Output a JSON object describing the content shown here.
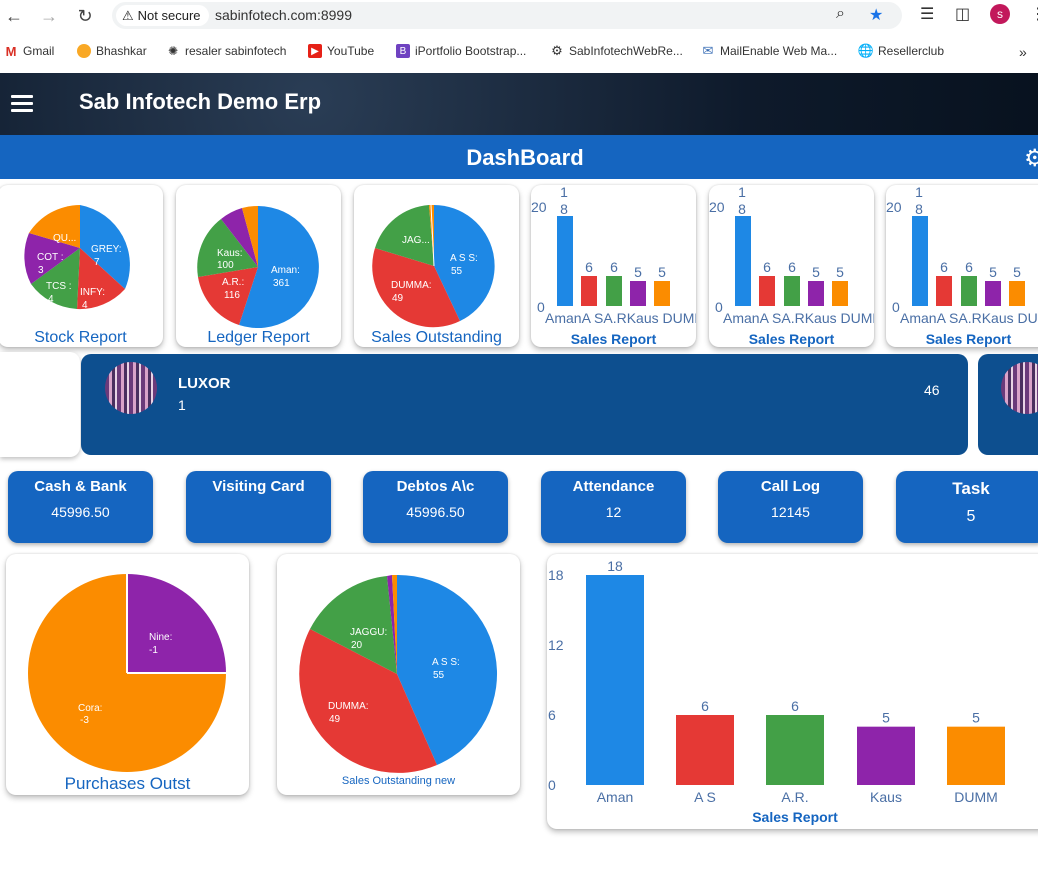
{
  "browser": {
    "security_label": "Not secure",
    "url": "sabinfotech.com:8999",
    "profile_initial": "s",
    "bookmarks": [
      "Gmail",
      "Bhashkar",
      "resaler sabinfotech",
      "YouTube",
      "iPortfolio Bootstrap...",
      "SabInfotechWebRe...",
      "MailEnable Web Ma...",
      "Resellerclub"
    ]
  },
  "app": {
    "title": "Sab Infotech Demo Erp",
    "dashboard_title": "DashBoard"
  },
  "colors": {
    "blue": "#1e88e5",
    "red": "#e53935",
    "green": "#43a047",
    "purple": "#8e24aa",
    "orange": "#fb8c00",
    "header_blue": "#1565c0"
  },
  "top_cards": {
    "stock": {
      "title": "Stock Report",
      "slices": [
        {
          "label": "GREY:",
          "value": "7"
        },
        {
          "label": "INFY:",
          "value": "4"
        },
        {
          "label": "TCS :",
          "value": "4"
        },
        {
          "label": "COT :",
          "value": "3"
        },
        {
          "label": "QU...",
          "value": ""
        }
      ]
    },
    "ledger": {
      "title": "Ledger Report",
      "slices": [
        {
          "label": "Aman:",
          "value": "361"
        },
        {
          "label": "A.R.:",
          "value": "116"
        },
        {
          "label": "Kaus:",
          "value": "100"
        }
      ]
    },
    "sales_out": {
      "title": "Sales Outstanding",
      "slices": [
        {
          "label": "A S S:",
          "value": "55"
        },
        {
          "label": "DUMMA:",
          "value": "49"
        },
        {
          "label": "JAG...",
          "value": ""
        }
      ]
    },
    "sales_report_title": "Sales Report",
    "mini_bar": {
      "top_label_a": "1",
      "top_label_b": "8",
      "y_top": "20",
      "y_zero": "0",
      "values": [
        "6",
        "6",
        "5",
        "5"
      ],
      "categories": "AmanA SA.RKaus DUMM"
    }
  },
  "luxor": {
    "name": "LUXOR",
    "sub": "1",
    "count": "46"
  },
  "stats": [
    {
      "label": "Cash & Bank",
      "value": "45996.50"
    },
    {
      "label": "Visiting Card",
      "value": ""
    },
    {
      "label": "Debtos A\\c",
      "value": "45996.50"
    },
    {
      "label": "Attendance",
      "value": "12"
    },
    {
      "label": "Call Log",
      "value": "12145"
    },
    {
      "label": "Task",
      "value": "5"
    }
  ],
  "purchases": {
    "title": "Purchases Outst",
    "slices": [
      {
        "label": "Nine:",
        "value": "-1"
      },
      {
        "label": "Cora:",
        "value": "-3"
      }
    ]
  },
  "sales_out_new": {
    "title": "Sales Outstanding new",
    "slices": [
      {
        "label": "A S S:",
        "value": "55"
      },
      {
        "label": "DUMMA:",
        "value": "49"
      },
      {
        "label": "JAGGU:",
        "value": "20"
      }
    ]
  },
  "chart_data": [
    {
      "type": "pie",
      "title": "Stock Report",
      "labels": [
        "GREY",
        "INFY",
        "TCS",
        "COT",
        "QU..."
      ],
      "values": [
        7,
        4,
        4,
        3,
        3
      ]
    },
    {
      "type": "pie",
      "title": "Ledger Report",
      "labels": [
        "Aman",
        "A.R.",
        "Kaus",
        "",
        ""
      ],
      "values": [
        361,
        116,
        100,
        35,
        20
      ]
    },
    {
      "type": "pie",
      "title": "Sales Outstanding",
      "labels": [
        "A S S",
        "DUMMA",
        "JAG...",
        "",
        ""
      ],
      "values": [
        55,
        49,
        20,
        1,
        1
      ]
    },
    {
      "type": "bar",
      "title": "Sales Report",
      "categories": [
        "Aman",
        "A S",
        "A.R.",
        "Kaus",
        "DUMM"
      ],
      "values": [
        18,
        6,
        6,
        5,
        5
      ],
      "ylim": [
        0,
        20
      ]
    },
    {
      "type": "pie",
      "title": "Purchases Outst",
      "labels": [
        "Nine",
        "Cora"
      ],
      "values": [
        -1,
        -3
      ]
    },
    {
      "type": "pie",
      "title": "Sales Outstanding new",
      "labels": [
        "A S S",
        "DUMMA",
        "JAGGU",
        "",
        ""
      ],
      "values": [
        55,
        49,
        20,
        1,
        1
      ]
    },
    {
      "type": "bar",
      "title": "Sales Report",
      "categories": [
        "Aman",
        "A S",
        "A.R.",
        "Kaus",
        "DUMM"
      ],
      "values": [
        18,
        6,
        6,
        5,
        5
      ],
      "yticks": [
        "18",
        "12",
        "6",
        "0"
      ],
      "ylim": [
        0,
        18
      ]
    }
  ]
}
